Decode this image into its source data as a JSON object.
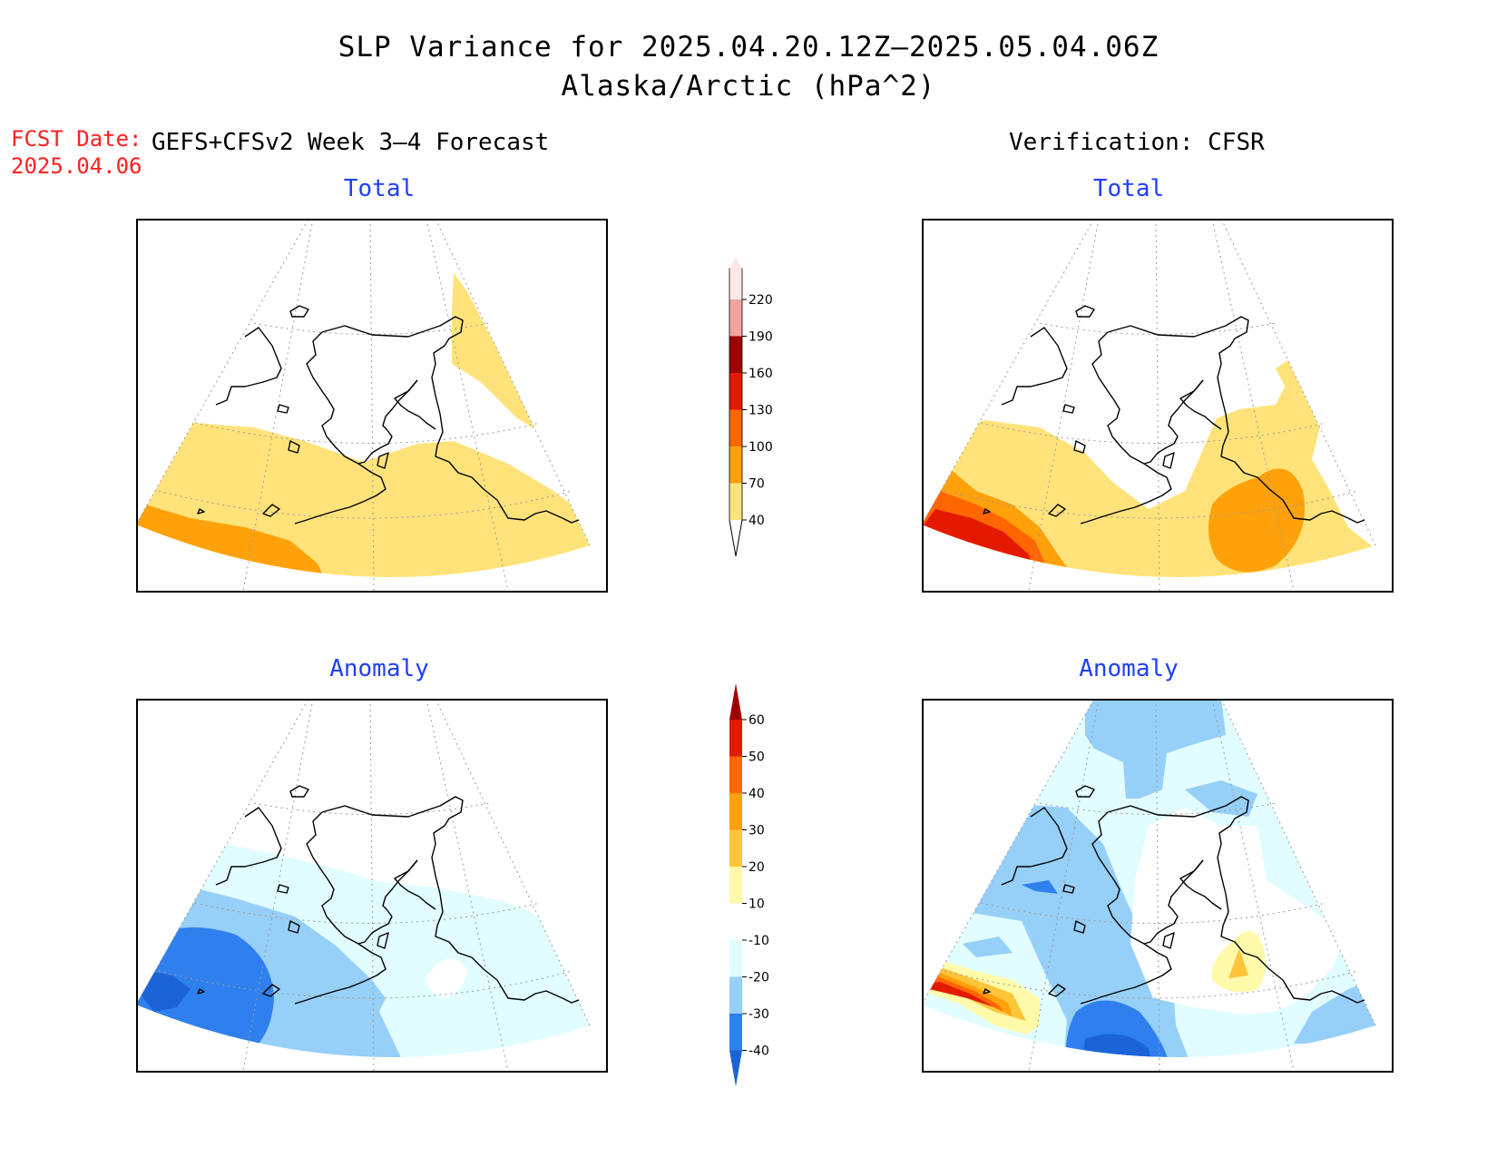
{
  "title": {
    "line1": "SLP Variance for 2025.04.20.12Z–2025.05.04.06Z",
    "line2": "Alaska/Arctic (hPa^2)"
  },
  "forecast_date": {
    "label": "FCST Date:",
    "value": "2025.04.06"
  },
  "headers": {
    "left": "GEFS+CFSv2 Week 3–4 Forecast",
    "right": "Verification: CFSR"
  },
  "panels": {
    "top_left": {
      "title": "Total"
    },
    "top_right": {
      "title": "Total"
    },
    "bottom_left": {
      "title": "Anomaly"
    },
    "bottom_right": {
      "title": "Anomaly"
    }
  },
  "colorbars": {
    "total": {
      "levels": [
        "40",
        "70",
        "100",
        "130",
        "160",
        "190",
        "220"
      ],
      "colors": [
        "#ffe37a",
        "#ffa10a",
        "#ff6600",
        "#e31a00",
        "#a00000",
        "#f4a2a2",
        "#fde7e7"
      ]
    },
    "anomaly": {
      "levels": [
        "-40",
        "-30",
        "-20",
        "-10",
        "10",
        "20",
        "30",
        "40",
        "50",
        "60"
      ],
      "colors": [
        "#1a64d8",
        "#2f80ee",
        "#96cff7",
        "#e1fdff",
        "#ffffff",
        "#fffaaa",
        "#ffc43a",
        "#ffa10a",
        "#ff6600",
        "#e31a00",
        "#a00000"
      ]
    }
  },
  "icons": {
    "coastline": "alaska-coastline-outline",
    "graticule": "dotted-lat-lon-grid"
  }
}
